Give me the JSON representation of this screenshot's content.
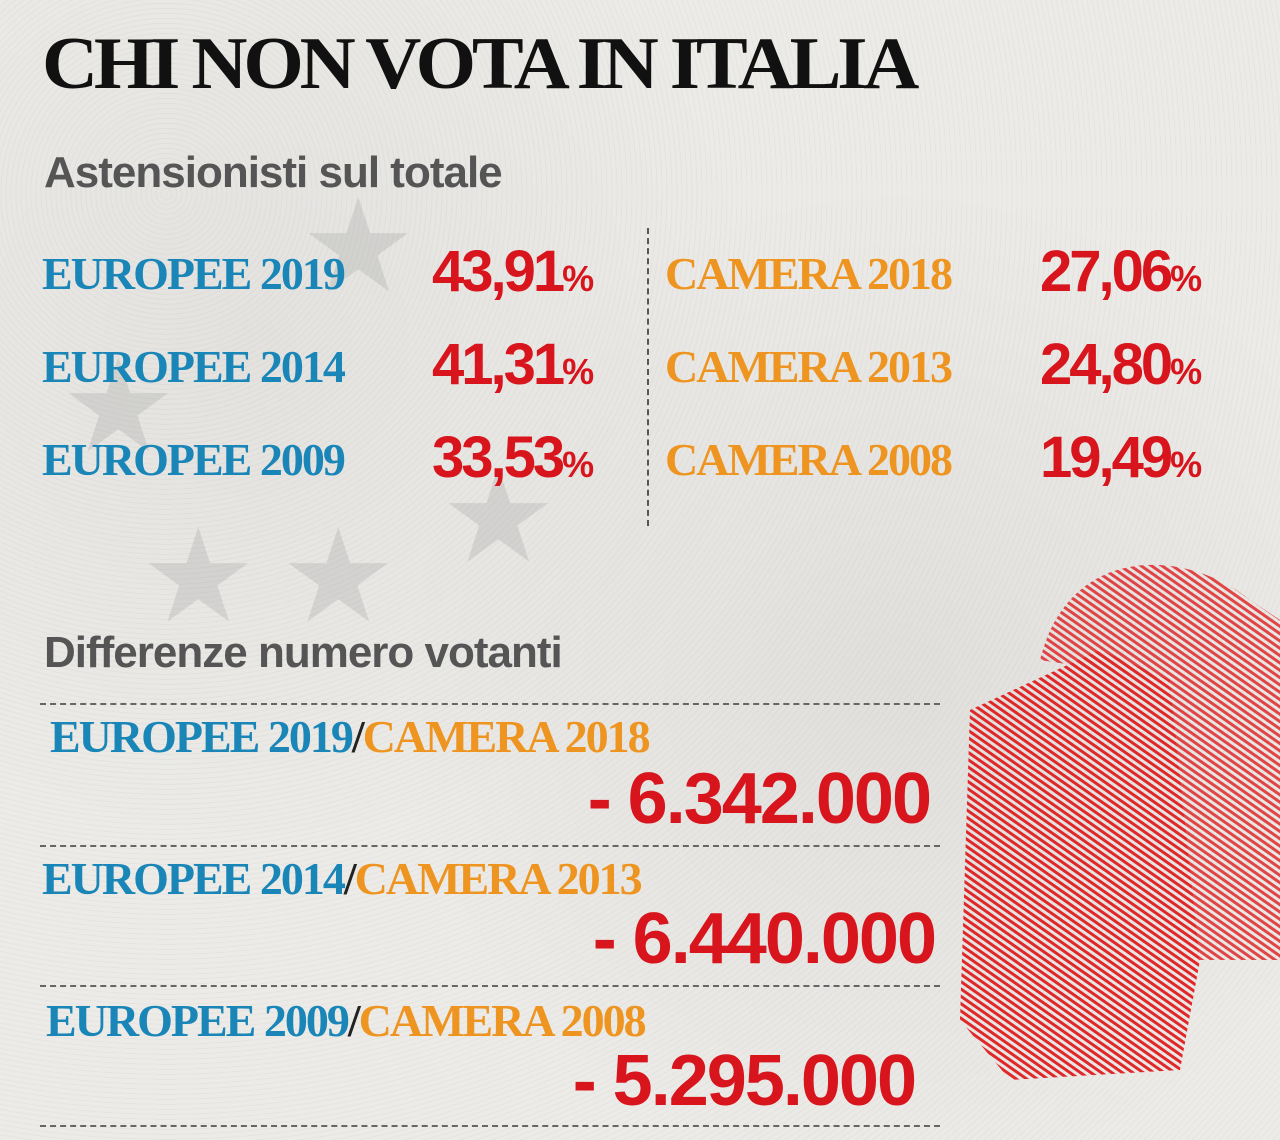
{
  "title": "CHI NON VOTA IN ITALIA",
  "section1": {
    "heading": "Astensionisti sul totale",
    "europee": [
      {
        "label": "EUROPEE 2019",
        "value": "43,91",
        "unit": "%"
      },
      {
        "label": "EUROPEE 2014",
        "value": "41,31",
        "unit": "%"
      },
      {
        "label": "EUROPEE 2009",
        "value": "33,53",
        "unit": "%"
      }
    ],
    "camera": [
      {
        "label": "CAMERA 2018",
        "value": "27,06",
        "unit": "%"
      },
      {
        "label": "CAMERA 2013",
        "value": "24,80",
        "unit": "%"
      },
      {
        "label": "CAMERA 2008",
        "value": "19,49",
        "unit": "%"
      }
    ]
  },
  "section2": {
    "heading": "Differenze numero votanti",
    "rows": [
      {
        "europee": "EUROPEE 2019",
        "sep": "/",
        "camera": "CAMERA 2018",
        "value": "- 6.342.000"
      },
      {
        "europee": "EUROPEE 2014",
        "sep": "/",
        "camera": "CAMERA 2013",
        "value": "- 6.440.000"
      },
      {
        "europee": "EUROPEE 2009",
        "sep": "/",
        "camera": "CAMERA 2008",
        "value": "- 5.295.000"
      }
    ]
  },
  "colors": {
    "europee": "#1a86b8",
    "camera": "#ee9420",
    "value": "#d8141c",
    "heading": "#555555"
  },
  "icons": [
    "eu-stars-background",
    "ballot-hand-illustration"
  ]
}
